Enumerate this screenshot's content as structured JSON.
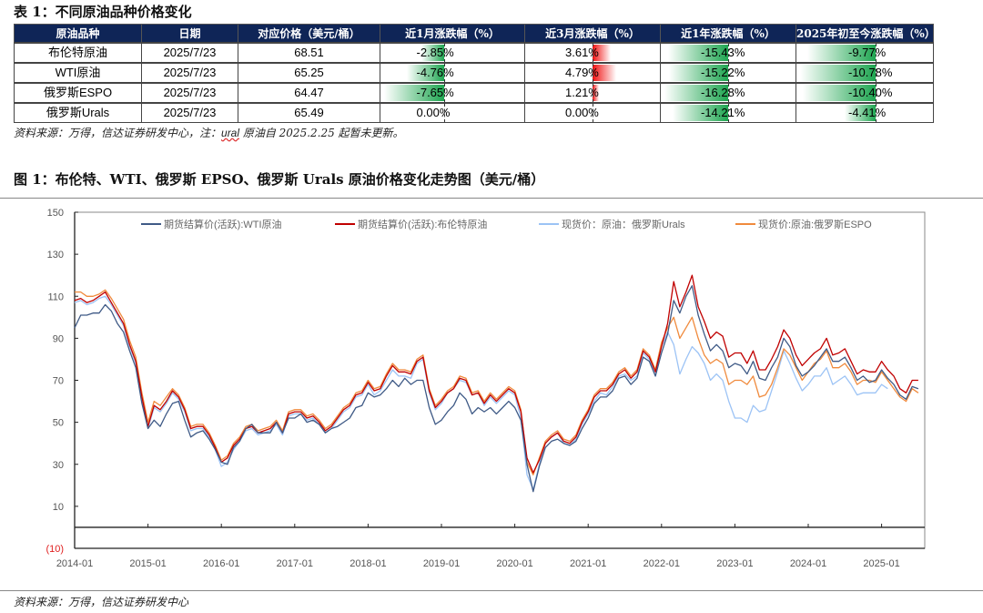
{
  "table": {
    "title": "表 1：不同原油品种价格变化",
    "headers": [
      "原油品种",
      "日期",
      "对应价格（美元/桶）",
      "近1月涨跌幅（%）",
      "近3月涨跌幅（%）",
      "近1年涨跌幅（%）",
      "2025年初至今涨跌幅（%）"
    ],
    "rows": [
      {
        "name": "布伦特原油",
        "date": "2025/7/23",
        "price": "68.51",
        "m1": -2.85,
        "m3": 3.61,
        "y1": -15.43,
        "ytd": -9.77,
        "m1_text": "-2.85%",
        "m3_text": "3.61%",
        "y1_text": "-15.43%",
        "ytd_text": "-9.77%"
      },
      {
        "name": "WTI原油",
        "date": "2025/7/23",
        "price": "65.25",
        "m1": -4.76,
        "m3": 4.79,
        "y1": -15.22,
        "ytd": -10.78,
        "m1_text": "-4.76%",
        "m3_text": "4.79%",
        "y1_text": "-15.22%",
        "ytd_text": "-10.78%"
      },
      {
        "name": "俄罗斯ESPO",
        "date": "2025/7/23",
        "price": "64.47",
        "m1": -7.65,
        "m3": 1.21,
        "y1": -16.28,
        "ytd": -10.4,
        "m1_text": "-7.65%",
        "m3_text": "1.21%",
        "y1_text": "-16.28%",
        "ytd_text": "-10.40%"
      },
      {
        "name": "俄罗斯Urals",
        "date": "2025/7/23",
        "price": "65.49",
        "m1": 0.0,
        "m3": 0.0,
        "y1": -14.21,
        "ytd": -4.41,
        "m1_text": "0.00%",
        "m3_text": "0.00%",
        "y1_text": "-14.21%",
        "ytd_text": "-4.41%"
      }
    ],
    "source_prefix": "资料来源：万得，信达证券研发中心，注：",
    "source_ural": "ural",
    "source_suffix": " 原油自 2025.2.25 起暂未更新。",
    "colors": {
      "header_bg": "#0f2557",
      "negative": "#1fa651",
      "positive": "#f01010"
    }
  },
  "figure": {
    "title": "图 1：布伦特、WTI、俄罗斯 EPSO、俄罗斯 Urals 原油价格变化走势图（美元/桶）",
    "source": "资料来源：万得，信达证券研发中心"
  },
  "chart_data": {
    "type": "line",
    "x_start": "2014-01",
    "x_frequency": "monthly",
    "x_ticks": [
      "2014-01",
      "2015-01",
      "2016-01",
      "2017-01",
      "2018-01",
      "2019-01",
      "2020-01",
      "2021-01",
      "2022-01",
      "2023-01",
      "2024-01",
      "2025-01"
    ],
    "y_ticks": [
      "150",
      "130",
      "110",
      "90",
      "70",
      "50",
      "30",
      "10",
      "(10)"
    ],
    "ylim": [
      -10,
      150
    ],
    "legend_position": "top",
    "series": [
      {
        "name": "期货结算价(活跃):WTI原油",
        "color": "#3f5a86",
        "values": [
          95,
          101,
          101,
          102,
          102,
          106,
          103,
          97,
          93,
          84,
          76,
          59,
          47,
          51,
          48,
          54,
          59,
          60,
          51,
          43,
          45,
          46,
          42,
          37,
          31,
          30,
          38,
          41,
          47,
          49,
          45,
          45,
          45,
          50,
          45,
          52,
          52,
          54,
          50,
          51,
          49,
          45,
          47,
          48,
          50,
          52,
          57,
          58,
          64,
          62,
          63,
          66,
          70,
          67,
          71,
          68,
          70,
          70,
          57,
          49,
          51,
          55,
          58,
          64,
          61,
          54,
          57,
          55,
          57,
          54,
          57,
          60,
          57,
          51,
          30,
          17,
          29,
          38,
          41,
          42,
          40,
          39,
          41,
          47,
          52,
          59,
          62,
          62,
          65,
          71,
          72,
          68,
          71,
          81,
          79,
          72,
          83,
          92,
          108,
          102,
          110,
          115,
          101,
          92,
          84,
          87,
          84,
          76,
          78,
          77,
          73,
          79,
          71,
          70,
          76,
          81,
          90,
          86,
          77,
          72,
          74,
          77,
          81,
          85,
          79,
          79,
          81,
          76,
          70,
          72,
          69,
          70,
          75,
          71,
          68,
          63,
          61,
          67,
          66
        ]
      },
      {
        "name": "期货结算价(活跃):布伦特原油",
        "color": "#c00000",
        "values": [
          108,
          109,
          107,
          108,
          110,
          112,
          107,
          102,
          97,
          87,
          79,
          62,
          48,
          58,
          56,
          60,
          65,
          62,
          56,
          47,
          48,
          48,
          44,
          38,
          31,
          33,
          39,
          42,
          47,
          48,
          45,
          46,
          47,
          50,
          45,
          54,
          55,
          55,
          52,
          53,
          50,
          46,
          48,
          52,
          56,
          58,
          63,
          64,
          69,
          65,
          66,
          72,
          77,
          74,
          74,
          73,
          79,
          81,
          65,
          57,
          60,
          64,
          66,
          71,
          70,
          63,
          64,
          59,
          63,
          60,
          63,
          66,
          64,
          55,
          33,
          26,
          32,
          40,
          43,
          45,
          41,
          40,
          43,
          50,
          55,
          62,
          65,
          65,
          68,
          73,
          75,
          71,
          74,
          84,
          81,
          74,
          86,
          97,
          117,
          105,
          112,
          120,
          105,
          98,
          90,
          93,
          91,
          81,
          83,
          83,
          78,
          84,
          75,
          75,
          80,
          86,
          94,
          90,
          82,
          77,
          80,
          83,
          85,
          90,
          82,
          83,
          85,
          79,
          73,
          75,
          74,
          74,
          79,
          75,
          72,
          66,
          64,
          70,
          70
        ]
      },
      {
        "name": "现货价：原油：俄罗斯Urals",
        "color": "#9cc3f5",
        "values": [
          107,
          108,
          106,
          107,
          109,
          110,
          106,
          101,
          96,
          86,
          78,
          61,
          47,
          57,
          55,
          59,
          64,
          61,
          55,
          46,
          47,
          47,
          43,
          37,
          29,
          31,
          37,
          41,
          46,
          47,
          44,
          45,
          46,
          49,
          44,
          53,
          54,
          54,
          51,
          52,
          49,
          45,
          47,
          51,
          55,
          57,
          62,
          63,
          68,
          63,
          65,
          70,
          75,
          72,
          72,
          71,
          78,
          80,
          64,
          56,
          59,
          64,
          66,
          70,
          69,
          63,
          64,
          58,
          62,
          59,
          62,
          65,
          63,
          52,
          25,
          18,
          30,
          40,
          43,
          45,
          40,
          39,
          42,
          49,
          54,
          60,
          64,
          63,
          67,
          72,
          73,
          70,
          72,
          83,
          80,
          72,
          86,
          93,
          87,
          73,
          80,
          86,
          83,
          78,
          70,
          73,
          70,
          60,
          52,
          52,
          50,
          58,
          55,
          56,
          65,
          74,
          84,
          78,
          71,
          65,
          68,
          72,
          72,
          76,
          68,
          70,
          72,
          68,
          63,
          64,
          64,
          64,
          68,
          66
        ]
      },
      {
        "name": "现货价:原油:俄罗斯ESPO",
        "color": "#f08a3c",
        "values": [
          112,
          112,
          110,
          110,
          111,
          113,
          109,
          104,
          99,
          89,
          81,
          64,
          50,
          60,
          58,
          62,
          66,
          63,
          57,
          48,
          49,
          49,
          45,
          39,
          32,
          34,
          40,
          43,
          48,
          49,
          46,
          47,
          48,
          51,
          46,
          55,
          56,
          56,
          53,
          54,
          51,
          47,
          49,
          53,
          57,
          59,
          64,
          65,
          70,
          66,
          67,
          73,
          78,
          75,
          75,
          74,
          80,
          82,
          66,
          58,
          61,
          65,
          67,
          72,
          71,
          64,
          65,
          60,
          64,
          61,
          64,
          67,
          65,
          56,
          31,
          25,
          33,
          41,
          44,
          46,
          42,
          41,
          44,
          51,
          56,
          63,
          66,
          66,
          69,
          74,
          76,
          72,
          75,
          85,
          82,
          75,
          88,
          95,
          100,
          90,
          95,
          100,
          90,
          82,
          78,
          80,
          78,
          68,
          70,
          70,
          68,
          72,
          62,
          63,
          68,
          76,
          85,
          82,
          76,
          70,
          74,
          78,
          80,
          84,
          76,
          76,
          78,
          74,
          68,
          70,
          70,
          69,
          74,
          70,
          66,
          62,
          60,
          66,
          64
        ]
      }
    ]
  }
}
